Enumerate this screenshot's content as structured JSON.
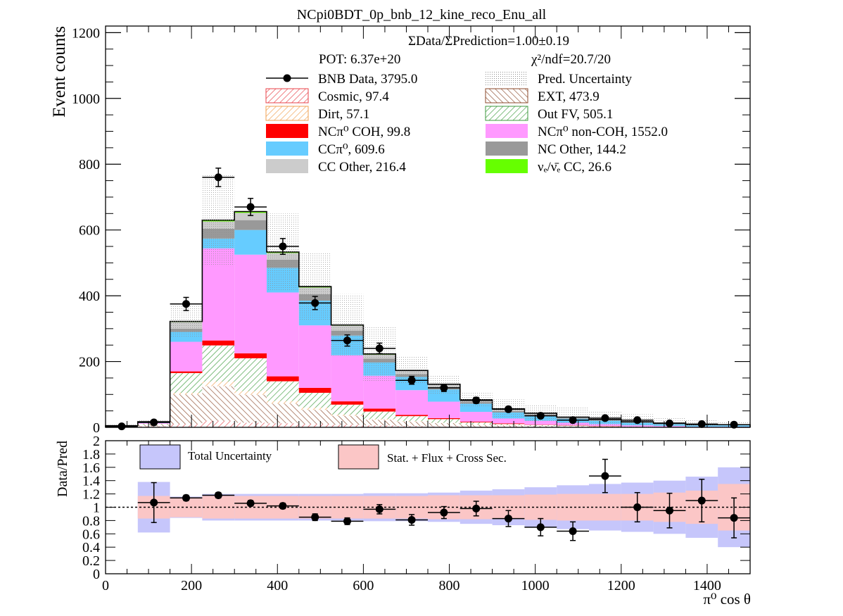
{
  "title": "NCpi0BDT_0p_bnb_12_kine_reco_Enu_all",
  "top_panel": {
    "ylabel": "Event counts",
    "ratio_text": "ΣData/ΣPrediction=1.00±0.19",
    "pot_text": "POT: 6.37e+20",
    "chi2_text": "χ²/ndf=20.7/20",
    "legend": [
      {
        "label": "BNB Data, 3795.0",
        "kind": "data"
      },
      {
        "label": "Pred. Uncertainty",
        "kind": "dotted",
        "color": "#999999"
      },
      {
        "label": "Cosmic, 97.4",
        "kind": "hatch",
        "color": "#e8434a"
      },
      {
        "label": "EXT, 473.9",
        "kind": "hatch",
        "color": "#8b4a2b"
      },
      {
        "label": "Dirt, 57.1",
        "kind": "hatch",
        "color": "#f0a050"
      },
      {
        "label": "Out FV, 505.1",
        "kind": "hatch",
        "color": "#3c9a3c"
      },
      {
        "label": "NCπ⁰ COH,  99.8",
        "kind": "fill",
        "color": "#ff0000"
      },
      {
        "label": "NCπ⁰ non-COH,  1552.0",
        "kind": "fill",
        "color": "#ff99ff"
      },
      {
        "label": "CCπ⁰, 609.6",
        "kind": "fill",
        "color": "#66ccff"
      },
      {
        "label": "NC Other, 144.2",
        "kind": "fill",
        "color": "#999999"
      },
      {
        "label": "CC Other, 216.4",
        "kind": "fill",
        "color": "#cccccc"
      },
      {
        "label": "νₑ/ν̄ₑ CC, 26.6",
        "kind": "fill",
        "color": "#66ff00"
      }
    ]
  },
  "bottom_panel": {
    "ylabel": "Data/Pred",
    "xlabel": "π⁰ cos θ",
    "legend": [
      {
        "label": "Total Uncertainty",
        "color": "#c6c6fb"
      },
      {
        "label": "Stat. + Flux + Cross Sec.",
        "color": "#fbc6c6"
      }
    ]
  },
  "chart_data": [
    {
      "type": "bar",
      "stacked": true,
      "xlim": [
        0,
        1500
      ],
      "ylim": [
        0,
        1220
      ],
      "yticks": [
        0,
        200,
        400,
        600,
        800,
        1000,
        1200
      ],
      "xticks": [
        0,
        200,
        400,
        600,
        800,
        1000,
        1200,
        1400
      ],
      "bin_edges": [
        0,
        75,
        150,
        225,
        300,
        375,
        450,
        525,
        600,
        675,
        750,
        825,
        900,
        975,
        1050,
        1125,
        1200,
        1275,
        1350,
        1425,
        1500
      ],
      "series": [
        {
          "name": "Cosmic, 97.4",
          "color": "#e8434a",
          "values": [
            1,
            3,
            10,
            20,
            14,
            12,
            10,
            8,
            6,
            4,
            3,
            2,
            1,
            1,
            1,
            1,
            0,
            0,
            0,
            0
          ]
        },
        {
          "name": "EXT, 473.9",
          "color": "#8b4a2b",
          "values": [
            2,
            5,
            90,
            105,
            85,
            60,
            43,
            27,
            17,
            13,
            10,
            6,
            5,
            3,
            2,
            1,
            1,
            0,
            0,
            0
          ]
        },
        {
          "name": "Dirt, 57.1",
          "color": "#f0a050",
          "values": [
            0,
            1,
            5,
            14,
            11,
            8,
            7,
            4,
            3,
            2,
            1,
            1,
            0,
            0,
            0,
            0,
            0,
            0,
            0,
            0
          ]
        },
        {
          "name": "Out FV, 505.1",
          "color": "#3c9a3c",
          "values": [
            0,
            2,
            60,
            110,
            100,
            60,
            45,
            30,
            22,
            15,
            11,
            6,
            4,
            3,
            2,
            1,
            1,
            1,
            0,
            0
          ]
        },
        {
          "name": "NCπ⁰ COH,  99.8",
          "color": "#ff0000",
          "values": [
            0,
            0,
            5,
            15,
            15,
            15,
            15,
            10,
            9,
            4,
            3,
            2,
            2,
            1,
            1,
            1,
            0,
            0,
            0,
            0
          ]
        },
        {
          "name": "NCπ⁰ non-COH,  1552.0",
          "color": "#ff99ff",
          "values": [
            1,
            2,
            90,
            280,
            300,
            255,
            190,
            140,
            100,
            75,
            50,
            30,
            15,
            12,
            8,
            6,
            4,
            3,
            2,
            2
          ]
        },
        {
          "name": "CCπ⁰, 609.6",
          "color": "#66ccff",
          "values": [
            1,
            2,
            30,
            30,
            75,
            75,
            75,
            60,
            40,
            40,
            37,
            25,
            18,
            16,
            12,
            10,
            8,
            6,
            4,
            4
          ]
        },
        {
          "name": "NC Other, 144.2",
          "color": "#999999",
          "values": [
            0,
            1,
            10,
            30,
            30,
            25,
            20,
            15,
            12,
            9,
            7,
            5,
            5,
            3,
            2,
            2,
            1,
            1,
            1,
            1
          ]
        },
        {
          "name": "CC Other, 216.4",
          "color": "#cccccc",
          "values": [
            0,
            1,
            20,
            22,
            22,
            20,
            20,
            15,
            12,
            10,
            8,
            6,
            5,
            4,
            3,
            2,
            2,
            2,
            1,
            1
          ]
        },
        {
          "name": "νₑ/ν̄ₑ CC, 26.6",
          "color": "#66ff00",
          "values": [
            0,
            0,
            2,
            4,
            4,
            3,
            3,
            2,
            2,
            1,
            1,
            1,
            1,
            0,
            0,
            0,
            0,
            0,
            0,
            0
          ]
        }
      ],
      "pred_uncertainty": [
        8,
        22,
        370,
        770,
        650,
        650,
        530,
        405,
        305,
        215,
        160,
        105,
        85,
        70,
        60,
        50,
        40,
        30,
        22,
        15
      ],
      "data_points": {
        "x": [
          37.5,
          112.5,
          187.5,
          262.5,
          337.5,
          412.5,
          487.5,
          562.5,
          637.5,
          712.5,
          787.5,
          862.5,
          937.5,
          1012.5,
          1087.5,
          1162.5,
          1237.5,
          1312.5,
          1387.5,
          1462.5
        ],
        "y": [
          3,
          15,
          375,
          760,
          670,
          550,
          378,
          264,
          240,
          143,
          120,
          82,
          55,
          35,
          22,
          28,
          22,
          12,
          10,
          8
        ],
        "yerr": [
          2,
          4,
          20,
          28,
          26,
          24,
          20,
          17,
          16,
          12,
          11,
          9,
          7,
          6,
          5,
          5,
          5,
          4,
          3,
          3
        ]
      }
    },
    {
      "type": "scatter",
      "ylabel": "Data/Pred",
      "xlabel": "π⁰ cos θ",
      "xlim": [
        0,
        1500
      ],
      "ylim": [
        0,
        2
      ],
      "yticks": [
        0,
        0.2,
        0.4,
        0.6,
        0.8,
        1,
        1.2,
        1.4,
        1.6,
        1.8,
        2
      ],
      "xticks": [
        0,
        200,
        400,
        600,
        800,
        1000,
        1200,
        1400
      ],
      "bin_edges": [
        0,
        75,
        150,
        225,
        300,
        375,
        450,
        525,
        600,
        675,
        750,
        825,
        900,
        975,
        1050,
        1125,
        1200,
        1275,
        1350,
        1425,
        1500
      ],
      "total_uncertainty": [
        0,
        0.38,
        0.16,
        0.2,
        0.2,
        0.2,
        0.2,
        0.2,
        0.21,
        0.21,
        0.22,
        0.25,
        0.27,
        0.3,
        0.33,
        0.35,
        0.37,
        0.4,
        0.46,
        0.6
      ],
      "stat_flux_xsec_uncertainty": [
        0,
        0.17,
        0.15,
        0.17,
        0.17,
        0.17,
        0.17,
        0.17,
        0.17,
        0.17,
        0.18,
        0.18,
        0.18,
        0.19,
        0.2,
        0.2,
        0.2,
        0.22,
        0.25,
        0.35
      ],
      "points": {
        "x": [
          112.5,
          187.5,
          262.5,
          337.5,
          412.5,
          487.5,
          562.5,
          637.5,
          712.5,
          787.5,
          862.5,
          937.5,
          1012.5,
          1087.5,
          1162.5,
          1237.5,
          1312.5,
          1387.5,
          1462.5
        ],
        "y": [
          1.07,
          1.14,
          1.18,
          1.06,
          1.02,
          0.85,
          0.79,
          0.97,
          0.81,
          0.92,
          0.98,
          0.83,
          0.7,
          0.64,
          1.47,
          1.0,
          0.95,
          1.1,
          0.84
        ],
        "yerr": [
          0.3,
          0.04,
          0.04,
          0.04,
          0.04,
          0.05,
          0.05,
          0.07,
          0.08,
          0.09,
          0.11,
          0.12,
          0.13,
          0.14,
          0.25,
          0.22,
          0.26,
          0.32,
          0.3
        ]
      }
    }
  ]
}
